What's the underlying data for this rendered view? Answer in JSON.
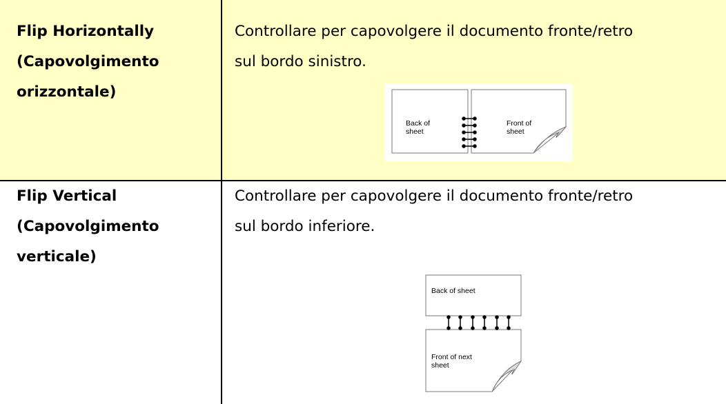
{
  "rows": [
    {
      "label": [
        "Flip Horizontally",
        "(Capovolgimento",
        "orizzontale)"
      ],
      "description": [
        "Controllare per capovolgere il documento fronte/retro",
        "sul bordo sinistro."
      ],
      "figure": {
        "back": [
          "Back of",
          "sheet"
        ],
        "front": [
          "Front of",
          "sheet"
        ]
      }
    },
    {
      "label": [
        "Flip Vertical",
        "(Capovolgimento",
        "verticale)"
      ],
      "description": [
        "Controllare per capovolgere il documento fronte/retro",
        "sul bordo inferiore."
      ],
      "figure": {
        "back": [
          "Back of sheet"
        ],
        "front": [
          "Front of next",
          "sheet"
        ]
      }
    }
  ]
}
